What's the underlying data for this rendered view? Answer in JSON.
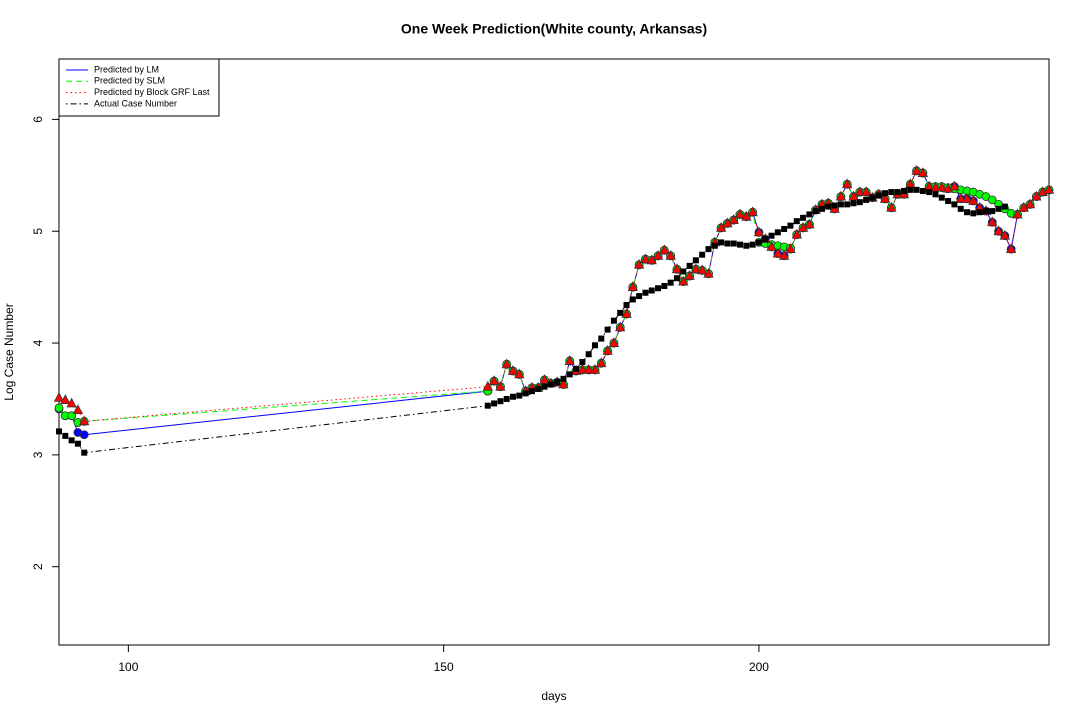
{
  "chart_data": {
    "type": "line",
    "title": "One Week Prediction(White county, Arkansas)",
    "xlabel": "days",
    "ylabel": "Log Case Number",
    "x": [
      89,
      90,
      91,
      92,
      93,
      157,
      158,
      159,
      160,
      161,
      162,
      163,
      164,
      165,
      166,
      167,
      168,
      169,
      170,
      171,
      172,
      173,
      174,
      175,
      176,
      177,
      178,
      179,
      180,
      181,
      182,
      183,
      184,
      185,
      186,
      187,
      188,
      189,
      190,
      191,
      192,
      193,
      194,
      195,
      196,
      197,
      198,
      199,
      200,
      201,
      202,
      203,
      204,
      205,
      206,
      207,
      208,
      209,
      210,
      211,
      212,
      213,
      214,
      215,
      216,
      217,
      218,
      219,
      220,
      221,
      222,
      223,
      224,
      225,
      226,
      227,
      228,
      229,
      230,
      231,
      232,
      233,
      234,
      235,
      236,
      237,
      238,
      239,
      240,
      241,
      242,
      243,
      244,
      245,
      246
    ],
    "xlim": [
      89,
      246
    ],
    "xticks": [
      100,
      150,
      200
    ],
    "ylim": [
      1.3,
      6.54
    ],
    "yticks": [
      2,
      3,
      4,
      5,
      6
    ],
    "legend": "topleft",
    "series": [
      {
        "name": "Predicted by LM",
        "color": "#0000ff",
        "linestyle": "solid",
        "marker": "circle",
        "values": [
          3.41,
          3.35,
          3.35,
          3.2,
          3.18,
          3.57,
          3.66,
          3.61,
          3.81,
          3.75,
          3.72,
          3.57,
          3.6,
          3.6,
          3.67,
          3.64,
          3.65,
          3.63,
          3.84,
          3.75,
          3.76,
          3.76,
          3.76,
          3.82,
          3.93,
          4.0,
          4.14,
          4.26,
          4.5,
          4.7,
          4.75,
          4.74,
          4.78,
          4.83,
          4.78,
          4.66,
          4.55,
          4.6,
          4.66,
          4.65,
          4.62,
          4.9,
          5.03,
          5.07,
          5.1,
          5.15,
          5.13,
          5.17,
          4.99,
          4.93,
          4.86,
          4.8,
          4.78,
          4.84,
          4.97,
          5.03,
          5.06,
          5.19,
          5.24,
          5.25,
          5.2,
          5.31,
          5.42,
          5.31,
          5.35,
          5.35,
          5.3,
          5.33,
          5.29,
          5.21,
          5.33,
          5.33,
          5.42,
          5.54,
          5.52,
          5.4,
          5.39,
          5.39,
          5.38,
          5.4,
          5.29,
          5.29,
          5.27,
          5.21,
          5.18,
          5.08,
          5.0,
          4.96,
          4.84,
          5.15,
          5.21,
          5.24,
          5.31,
          5.35,
          5.37
        ]
      },
      {
        "name": "Predicted by SLM",
        "color": "#00ff00",
        "linestyle": "dashed",
        "marker": "circle",
        "values": [
          3.42,
          3.35,
          3.35,
          3.29,
          3.3,
          3.57,
          3.66,
          3.61,
          3.81,
          3.75,
          3.72,
          3.57,
          3.6,
          3.6,
          3.67,
          3.64,
          3.65,
          3.63,
          3.84,
          3.75,
          3.76,
          3.76,
          3.76,
          3.82,
          3.93,
          4.0,
          4.14,
          4.26,
          4.5,
          4.7,
          4.75,
          4.74,
          4.78,
          4.83,
          4.78,
          4.66,
          4.55,
          4.6,
          4.66,
          4.65,
          4.62,
          4.9,
          5.03,
          5.07,
          5.1,
          5.15,
          5.13,
          5.17,
          4.9,
          4.89,
          4.88,
          4.87,
          4.86,
          4.85,
          4.97,
          5.03,
          5.06,
          5.19,
          5.24,
          5.25,
          5.2,
          5.31,
          5.42,
          5.31,
          5.35,
          5.35,
          5.3,
          5.33,
          5.29,
          5.21,
          5.33,
          5.33,
          5.42,
          5.54,
          5.52,
          5.4,
          5.4,
          5.4,
          5.39,
          5.38,
          5.37,
          5.36,
          5.35,
          5.33,
          5.31,
          5.28,
          5.24,
          5.2,
          5.16,
          5.15,
          5.21,
          5.24,
          5.31,
          5.35,
          5.37
        ]
      },
      {
        "name": "Predicted by Block GRF Last",
        "color": "#ff0000",
        "linestyle": "dotted",
        "marker": "triangle",
        "values": [
          3.51,
          3.49,
          3.46,
          3.4,
          3.3,
          3.61,
          3.66,
          3.61,
          3.81,
          3.75,
          3.72,
          3.57,
          3.6,
          3.6,
          3.67,
          3.64,
          3.65,
          3.63,
          3.84,
          3.75,
          3.76,
          3.76,
          3.76,
          3.82,
          3.93,
          4.0,
          4.14,
          4.26,
          4.5,
          4.7,
          4.75,
          4.74,
          4.78,
          4.83,
          4.78,
          4.66,
          4.55,
          4.6,
          4.66,
          4.65,
          4.62,
          4.9,
          5.03,
          5.07,
          5.1,
          5.15,
          5.13,
          5.17,
          4.99,
          4.93,
          4.86,
          4.8,
          4.78,
          4.84,
          4.97,
          5.03,
          5.06,
          5.19,
          5.24,
          5.25,
          5.2,
          5.31,
          5.42,
          5.31,
          5.35,
          5.35,
          5.3,
          5.33,
          5.29,
          5.21,
          5.33,
          5.33,
          5.42,
          5.54,
          5.52,
          5.4,
          5.39,
          5.39,
          5.38,
          5.4,
          5.29,
          5.29,
          5.27,
          5.21,
          5.18,
          5.08,
          5.0,
          4.96,
          4.84,
          5.15,
          5.21,
          5.24,
          5.31,
          5.35,
          5.37
        ]
      },
      {
        "name": "Actual Case Number",
        "color": "#000000",
        "linestyle": "dotdash",
        "marker": "square",
        "values": [
          3.21,
          3.17,
          3.13,
          3.1,
          3.02,
          3.44,
          3.46,
          3.48,
          3.5,
          3.52,
          3.53,
          3.55,
          3.57,
          3.59,
          3.61,
          3.63,
          3.65,
          3.68,
          3.72,
          3.77,
          3.83,
          3.9,
          3.98,
          4.04,
          4.12,
          4.2,
          4.27,
          4.34,
          4.39,
          4.42,
          4.45,
          4.47,
          4.49,
          4.51,
          4.54,
          4.58,
          4.64,
          4.69,
          4.74,
          4.79,
          4.84,
          4.87,
          4.9,
          4.89,
          4.89,
          4.88,
          4.87,
          4.88,
          4.9,
          4.93,
          4.96,
          4.99,
          5.02,
          5.05,
          5.09,
          5.12,
          5.15,
          5.18,
          5.2,
          5.22,
          5.23,
          5.24,
          5.24,
          5.25,
          5.26,
          5.28,
          5.3,
          5.32,
          5.34,
          5.35,
          5.35,
          5.36,
          5.37,
          5.37,
          5.36,
          5.35,
          5.33,
          5.3,
          5.27,
          5.24,
          5.2,
          5.17,
          5.16,
          5.17,
          5.18,
          5.18,
          5.2,
          5.22,
          null,
          null,
          null,
          null,
          null,
          null,
          null
        ]
      }
    ]
  }
}
